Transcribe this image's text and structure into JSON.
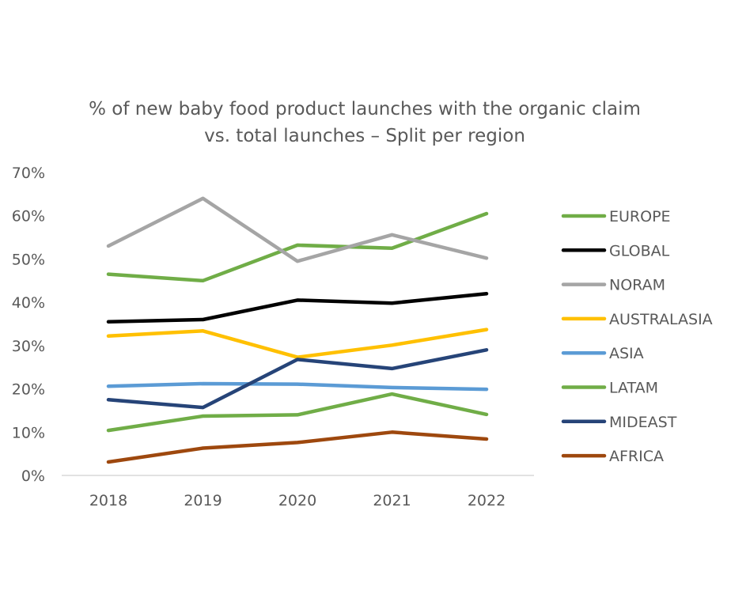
{
  "chart_data": {
    "type": "line",
    "title_lines": [
      "% of new baby food product launches with the organic claim",
      "vs. total launches – Split per region"
    ],
    "xlabel": "",
    "ylabel": "",
    "categories": [
      "2018",
      "2019",
      "2020",
      "2021",
      "2022"
    ],
    "ylim": [
      0,
      70
    ],
    "yticks": [
      0,
      10,
      20,
      30,
      40,
      50,
      60,
      70
    ],
    "ytick_labels": [
      "0%",
      "10%",
      "20%",
      "30%",
      "40%",
      "50%",
      "60%",
      "70%"
    ],
    "grid": false,
    "legend_position": "right",
    "series": [
      {
        "name": "EUROPE",
        "color": "#70AD47",
        "values": [
          46.5,
          45.0,
          53.2,
          52.5,
          60.5
        ]
      },
      {
        "name": "GLOBAL",
        "color": "#000000",
        "values": [
          35.5,
          36.0,
          40.5,
          39.8,
          42.0
        ]
      },
      {
        "name": "NORAM",
        "color": "#A5A5A5",
        "values": [
          53.0,
          64.0,
          49.5,
          55.6,
          50.2
        ]
      },
      {
        "name": "AUSTRALASIA",
        "color": "#FFC000",
        "values": [
          32.2,
          33.4,
          27.3,
          30.1,
          33.7
        ]
      },
      {
        "name": "ASIA",
        "color": "#5B9BD5",
        "values": [
          20.6,
          21.2,
          21.1,
          20.3,
          19.9
        ]
      },
      {
        "name": "LATAM",
        "color": "#70AD47",
        "values": [
          10.4,
          13.7,
          14.0,
          18.8,
          14.1
        ]
      },
      {
        "name": "MIDEAST",
        "color": "#264478",
        "values": [
          17.5,
          15.7,
          26.8,
          24.7,
          29.0
        ]
      },
      {
        "name": "AFRICA",
        "color": "#9E480E",
        "values": [
          3.1,
          6.3,
          7.6,
          10.0,
          8.4
        ]
      }
    ]
  }
}
